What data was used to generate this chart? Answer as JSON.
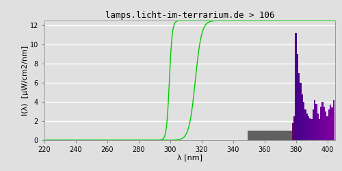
{
  "title": "lamps.licht-im-terrarium.de > 106",
  "xlabel": "λ [nm]",
  "ylabel": "I(λ)  [μW/cm2/nm]",
  "xlim": [
    220,
    405
  ],
  "ylim": [
    0,
    12.5
  ],
  "yticks": [
    0,
    2,
    4,
    6,
    8,
    10,
    12
  ],
  "xticks": [
    220,
    240,
    260,
    280,
    300,
    320,
    340,
    360,
    380,
    400
  ],
  "background_color": "#e0e0e0",
  "axes_background": "#e0e0e0",
  "grid_color": "#ffffff",
  "line_color": "#00cc00",
  "title_fontsize": 9,
  "axis_fontsize": 8,
  "tick_fontsize": 7,
  "spec_wavelengths": [
    350,
    351,
    352,
    353,
    354,
    355,
    356,
    357,
    358,
    359,
    360,
    361,
    362,
    363,
    364,
    365,
    366,
    367,
    368,
    369,
    370,
    371,
    372,
    373,
    374,
    375,
    376,
    377,
    378,
    379,
    380,
    381,
    382,
    383,
    384,
    385,
    386,
    387,
    388,
    389,
    390,
    391,
    392,
    393,
    394,
    395,
    396,
    397,
    398,
    399,
    400,
    401,
    402,
    403,
    404
  ],
  "spec_values": [
    1.0,
    1.0,
    1.0,
    1.0,
    1.0,
    1.0,
    1.0,
    1.0,
    1.0,
    1.0,
    1.0,
    1.0,
    1.0,
    1.0,
    1.0,
    1.0,
    1.0,
    1.0,
    1.0,
    1.0,
    1.0,
    1.0,
    1.0,
    1.0,
    1.0,
    1.0,
    1.0,
    1.0,
    1.8,
    2.5,
    11.2,
    9.0,
    7.0,
    6.0,
    4.8,
    4.0,
    3.2,
    2.8,
    2.5,
    2.3,
    2.2,
    3.2,
    4.2,
    3.8,
    2.8,
    2.2,
    3.5,
    4.0,
    3.5,
    3.0,
    2.5,
    3.2,
    3.7,
    3.4,
    4.2
  ],
  "gray_color": "#606060",
  "curve1_xmid": 299.5,
  "curve1_steep": 1.1,
  "curve1_xmin": 293,
  "curve2_xmid": 316.0,
  "curve2_steep": 0.5,
  "curve2_xmin": 298,
  "ymax": 12.5
}
